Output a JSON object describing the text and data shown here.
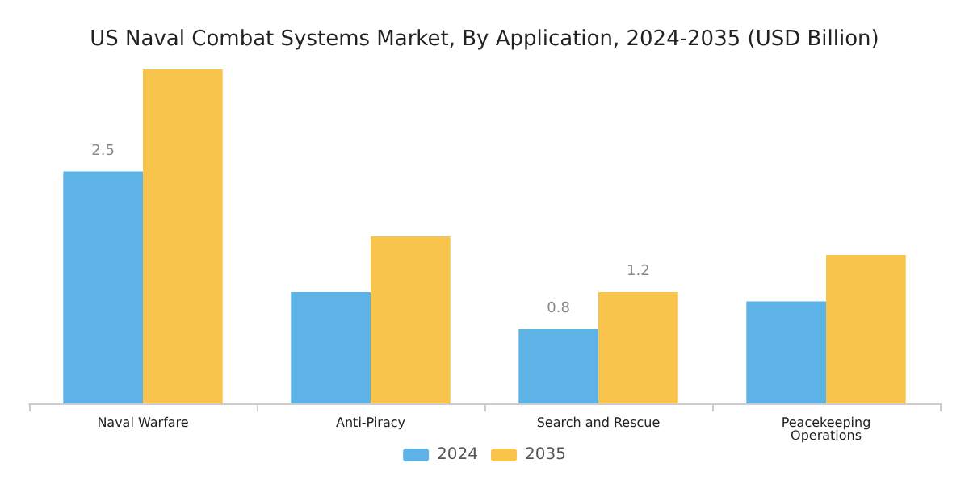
{
  "chart_data": {
    "type": "bar",
    "title": "US Naval Combat Systems Market, By Application, 2024-2035 (USD Billion)",
    "categories": [
      "Naval Warfare",
      "Anti-Piracy",
      "Search and Rescue",
      "Peacekeeping\nOperations"
    ],
    "series": [
      {
        "name": "2024",
        "color": "#5db3e6",
        "values": [
          2.5,
          1.2,
          0.8,
          1.1
        ],
        "value_labels": [
          "2.5",
          null,
          "0.8",
          null
        ]
      },
      {
        "name": "2035",
        "color": "#f9c44c",
        "values": [
          3.6,
          1.8,
          1.2,
          1.6
        ],
        "value_labels": [
          null,
          null,
          "1.2",
          null
        ]
      }
    ],
    "legend": "bottom",
    "grid": false
  }
}
